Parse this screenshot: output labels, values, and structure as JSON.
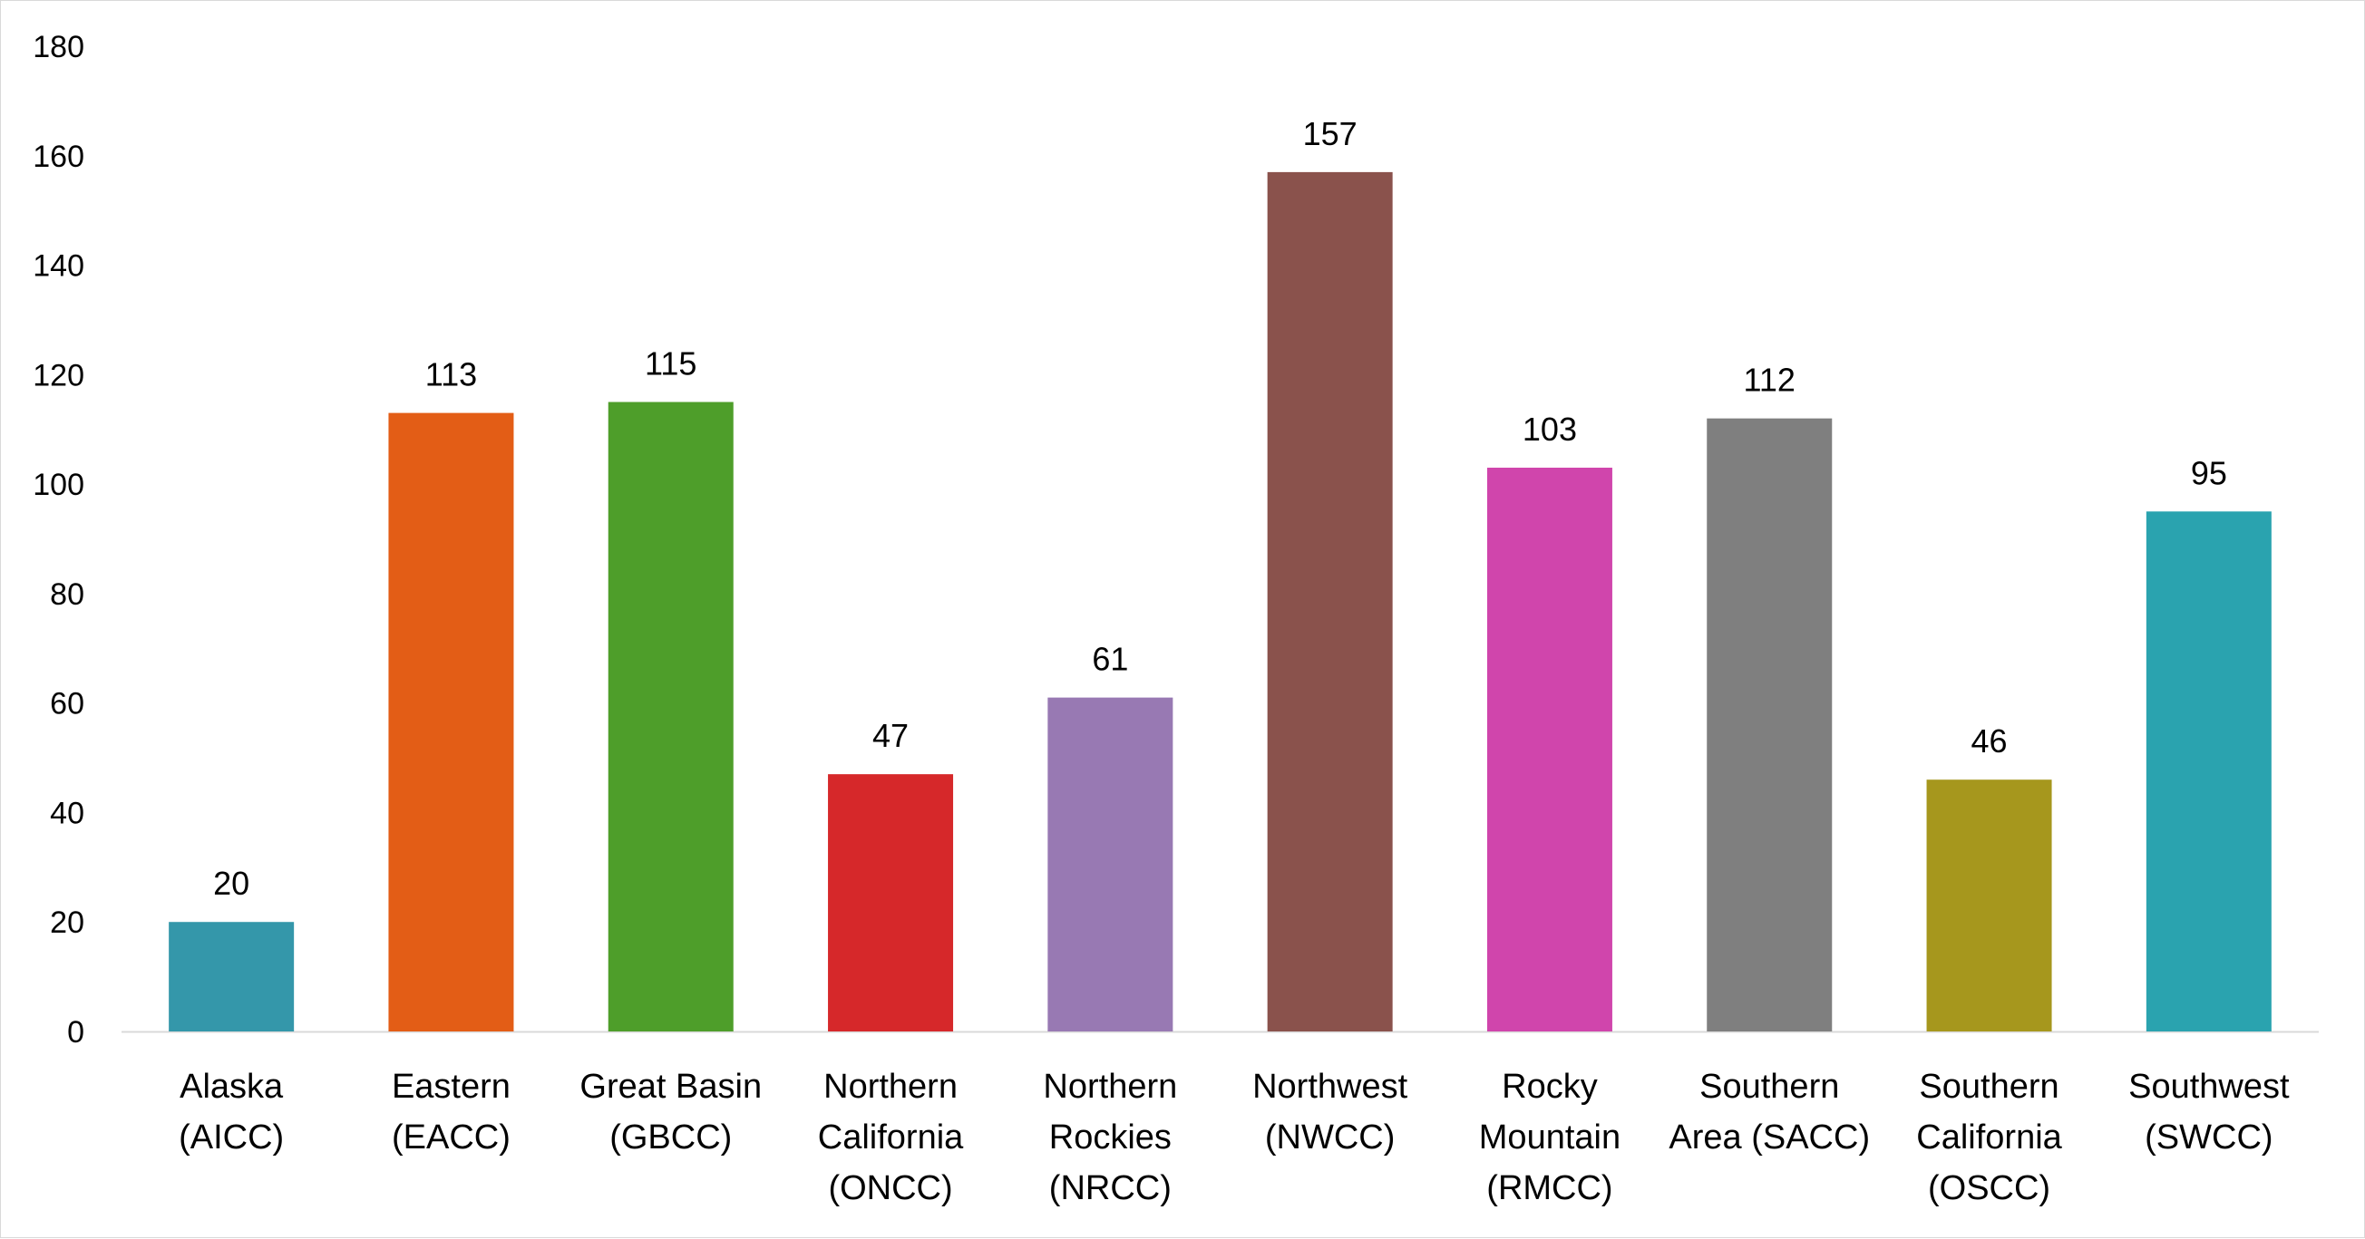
{
  "chart_data": {
    "type": "bar",
    "title": "",
    "xlabel": "",
    "ylabel": "",
    "ylim": [
      0,
      180
    ],
    "yticks": [
      0,
      20,
      40,
      60,
      80,
      100,
      120,
      140,
      160,
      180
    ],
    "grid": false,
    "legend": "none",
    "categories": [
      [
        "Alaska",
        "(AICC)"
      ],
      [
        "Eastern",
        "(EACC)"
      ],
      [
        "Great Basin",
        "(GBCC)"
      ],
      [
        "Northern",
        "California",
        "(ONCC)"
      ],
      [
        "Northern",
        "Rockies",
        "(NRCC)"
      ],
      [
        "Northwest",
        "(NWCC)"
      ],
      [
        "Rocky",
        "Mountain",
        "(RMCC)"
      ],
      [
        "Southern",
        "Area (SACC)"
      ],
      [
        "Southern",
        "California",
        "(OSCC)"
      ],
      [
        "Southwest",
        "(SWCC)"
      ]
    ],
    "values": [
      20,
      113,
      115,
      47,
      61,
      157,
      103,
      112,
      46,
      95
    ],
    "colors": [
      "#3497AA",
      "#E35D16",
      "#4E9E2A",
      "#D6282A",
      "#9879B3",
      "#8A524C",
      "#D045AC",
      "#7F7F7F",
      "#A6971D",
      "#2AA3AF"
    ]
  }
}
